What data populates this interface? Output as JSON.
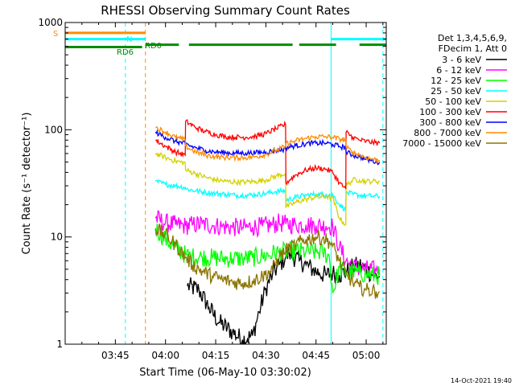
{
  "chart_data": {
    "type": "line",
    "title": "RHESSI Observing Summary Count Rates",
    "xlabel": "Start Time (06-May-10 03:30:02)",
    "ylabel": "Count Rate (s⁻¹ detector⁻¹)",
    "x_unit": "minutes after 03:30:02",
    "xlim": [
      0,
      96
    ],
    "ylim": [
      1,
      1000
    ],
    "yscale": "log",
    "x_ticks": [
      {
        "x": 15,
        "label": "03:45"
      },
      {
        "x": 30,
        "label": "04:00"
      },
      {
        "x": 45,
        "label": "04:15"
      },
      {
        "x": 60,
        "label": "04:30"
      },
      {
        "x": 75,
        "label": "04:45"
      },
      {
        "x": 90,
        "label": "05:00"
      }
    ],
    "y_ticks": [
      {
        "y": 1,
        "label": "1"
      },
      {
        "y": 10,
        "label": "10"
      },
      {
        "y": 100,
        "label": "100"
      },
      {
        "y": 1000,
        "label": "1000"
      }
    ],
    "grid": false,
    "legend_position": "right",
    "legend_header": [
      "Det 1,3,4,5,6,9,",
      "FDecim 1, Att 0"
    ],
    "footer_date": "14-Oct-2021 19:40",
    "series": [
      {
        "name": "3 - 6 keV",
        "color": "#000000",
        "x": [
          36.5,
          40,
          43,
          46,
          50,
          53,
          56,
          58,
          60,
          62,
          64,
          66,
          67,
          68,
          70,
          72,
          74,
          76,
          78,
          80,
          82,
          84,
          86,
          88,
          90,
          92,
          94
        ],
        "y": [
          3.5,
          3.2,
          2.2,
          1.6,
          1.3,
          1.1,
          1.2,
          2.0,
          3.3,
          4.5,
          5.5,
          6.5,
          7.0,
          6.6,
          6.0,
          5.5,
          5.0,
          4.6,
          4.4,
          4.6,
          4.4,
          4.8,
          5.2,
          5.5,
          5.0,
          4.4,
          4.3
        ]
      },
      {
        "name": "6 - 12 keV",
        "color": "#ff00ff",
        "x": [
          27,
          30,
          33,
          36,
          38,
          41,
          44,
          47,
          50,
          53,
          56,
          59,
          62,
          64,
          66,
          69,
          72,
          75,
          78,
          80,
          82,
          84,
          86,
          88,
          90,
          93,
          94
        ],
        "y": [
          15,
          13.5,
          13,
          12.7,
          13,
          13.2,
          12.8,
          12.5,
          12.3,
          12.2,
          12.4,
          12.6,
          13,
          13.5,
          13.2,
          13,
          13,
          12.8,
          12.6,
          12.6,
          8,
          6,
          5.3,
          5.1,
          5.0,
          4.9,
          5.0
        ]
      },
      {
        "name": "12 - 25 keV",
        "color": "#00ff00",
        "x": [
          27,
          30,
          33,
          36,
          38,
          41,
          44,
          47,
          50,
          53,
          56,
          59,
          62,
          64,
          66,
          69,
          72,
          75,
          77,
          79,
          80,
          82,
          84,
          86,
          88,
          90,
          93,
          94
        ],
        "y": [
          12,
          9.5,
          8,
          6.8,
          6.5,
          6.5,
          6.4,
          6.3,
          6.3,
          6.3,
          6.4,
          6.6,
          7,
          7.2,
          7.3,
          7.4,
          7.3,
          7.2,
          7.2,
          6.5,
          3.0,
          5.2,
          4.6,
          4.7,
          4.6,
          4.5,
          4.3,
          4.4
        ]
      },
      {
        "name": "25 - 50 keV",
        "color": "#00ffff",
        "x": [
          27,
          30,
          33,
          35.9,
          36,
          39,
          42,
          45,
          48,
          51,
          54,
          57,
          60,
          63,
          65.9,
          66,
          69,
          72,
          75,
          78,
          80,
          82,
          83.9,
          84,
          86,
          88,
          90,
          92,
          94
        ],
        "y": [
          33,
          31,
          30,
          29,
          28,
          27,
          26,
          25.5,
          25,
          24.5,
          24.5,
          24.8,
          25.5,
          26.5,
          27,
          22,
          23.5,
          24.5,
          25,
          25,
          24.8,
          20,
          18,
          26,
          25,
          24.5,
          24.2,
          24,
          24
        ]
      },
      {
        "name": "50 - 100 keV",
        "color": "#d2d200",
        "x": [
          27,
          30,
          33,
          35.9,
          36,
          39,
          42,
          45,
          48,
          51,
          54,
          57,
          60,
          63,
          65.9,
          66,
          69,
          72,
          75,
          78,
          80,
          82,
          83.9,
          84,
          86,
          88,
          90,
          92,
          94
        ],
        "y": [
          60,
          55,
          51,
          49,
          42,
          39,
          36,
          34,
          33,
          32.5,
          32.5,
          33,
          34,
          37,
          39,
          19,
          21,
          22.5,
          23.5,
          23.8,
          23,
          15,
          13,
          30,
          34,
          34,
          33,
          33,
          33
        ]
      },
      {
        "name": "100 - 300 keV",
        "color": "#ff0000",
        "x": [
          27,
          30,
          33,
          35.9,
          36,
          39,
          42,
          45,
          48,
          51,
          54,
          57,
          60,
          63,
          65.9,
          66,
          69,
          72,
          75,
          78,
          80,
          82,
          83.9,
          84,
          86,
          88,
          90,
          92,
          94
        ],
        "y": [
          80,
          70,
          62,
          58,
          120,
          105,
          96,
          90,
          86,
          85,
          85,
          87,
          92,
          102,
          112,
          32,
          38,
          42,
          44,
          43,
          40,
          32,
          28,
          95,
          85,
          80,
          78,
          76,
          75
        ]
      },
      {
        "name": "300 - 800 keV",
        "color": "#0000ff",
        "x": [
          27,
          30,
          33,
          35.9,
          36,
          39,
          42,
          45,
          48,
          51,
          54,
          57,
          60,
          63,
          65.9,
          66,
          69,
          72,
          75,
          78,
          80,
          82,
          83.9,
          84,
          86,
          88,
          90,
          92,
          94
        ],
        "y": [
          95,
          85,
          78,
          74,
          73,
          68,
          64,
          62,
          61,
          60.5,
          60.5,
          61,
          62,
          64,
          66,
          68,
          71,
          74,
          75,
          75,
          73,
          70,
          68,
          62,
          58,
          56,
          53,
          51,
          50
        ]
      },
      {
        "name": "800 - 7000 keV",
        "color": "#ff8c00",
        "x": [
          27,
          30,
          33,
          35.9,
          36,
          39,
          42,
          45,
          48,
          51,
          54,
          57,
          60,
          63,
          65.9,
          66,
          69,
          72,
          75,
          78,
          80,
          82,
          83.9,
          84,
          86,
          88,
          90,
          92,
          94
        ],
        "y": [
          105,
          95,
          85,
          80,
          70,
          62,
          58,
          56,
          55,
          55,
          55,
          56,
          59,
          64,
          70,
          74,
          79,
          83,
          86,
          86,
          85,
          82,
          80,
          68,
          62,
          58,
          55,
          53,
          52
        ]
      },
      {
        "name": "7000 - 15000 keV",
        "color": "#8b7500",
        "x": [
          27,
          30,
          33,
          36,
          38,
          41,
          44,
          47,
          50,
          53,
          56,
          59,
          62,
          64,
          66,
          69,
          72,
          75,
          77,
          79,
          80,
          82,
          84,
          86,
          88,
          90,
          93,
          94
        ],
        "y": [
          12,
          10.5,
          8.5,
          6.5,
          5.5,
          4.8,
          4.3,
          4.0,
          3.8,
          3.7,
          3.9,
          4.3,
          5.0,
          6.5,
          7.5,
          8.5,
          9.5,
          10,
          9.8,
          9.0,
          8.2,
          6.0,
          4.5,
          3.8,
          3.4,
          3.2,
          3.1,
          3.1
        ]
      }
    ],
    "annotations": [
      {
        "label": "S",
        "color": "#ff8c00",
        "segments": [
          [
            0,
            24
          ]
        ],
        "level": 800
      },
      {
        "label": "N",
        "color": "#00ffff",
        "segments": [
          [
            0,
            24
          ],
          [
            79.5,
            96
          ]
        ],
        "level": 700
      },
      {
        "label": "RD0",
        "color": "#008c00",
        "segments": [
          [
            24,
            34
          ],
          [
            37,
            68
          ],
          [
            70,
            81
          ],
          [
            88,
            96
          ]
        ],
        "level": 620
      },
      {
        "label": "RD6",
        "color": "#008c00",
        "segments": [
          [
            0,
            23
          ]
        ],
        "level": 590
      }
    ],
    "vertical_markers": [
      {
        "x": 0,
        "color": "#00ffff",
        "style": "solid"
      },
      {
        "x": 18,
        "color": "#00ffff",
        "style": "dashed"
      },
      {
        "x": 24,
        "color": "#ff8c00",
        "style": "dashed"
      },
      {
        "x": 79.5,
        "color": "#00ffff",
        "style": "solid"
      },
      {
        "x": 95,
        "color": "#00ffff",
        "style": "dashed"
      }
    ]
  }
}
